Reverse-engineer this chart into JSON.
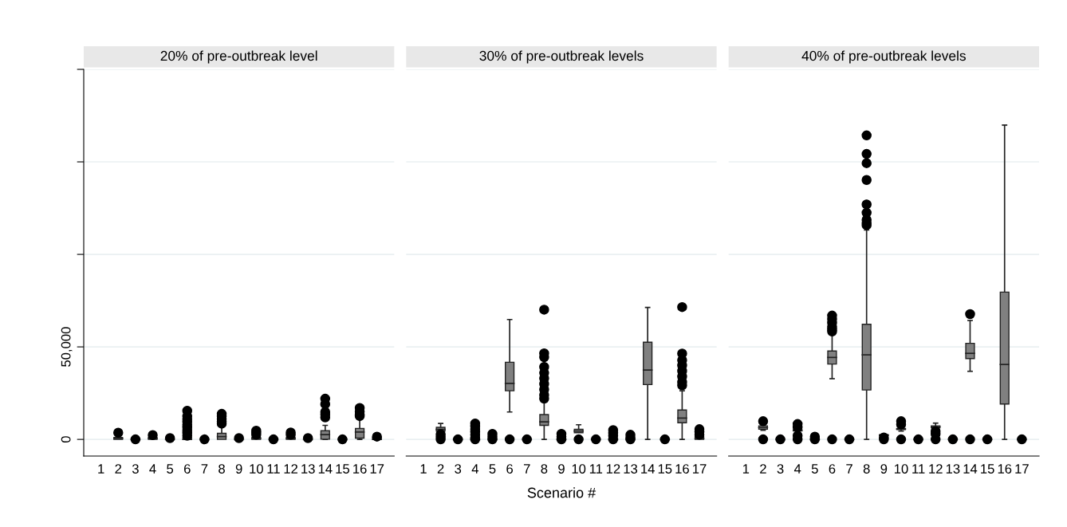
{
  "chart_data": [
    {
      "type": "box",
      "title": "20% of pre-outbreak level",
      "categories": [
        "1",
        "2",
        "3",
        "4",
        "5",
        "6",
        "7",
        "8",
        "9",
        "10",
        "11",
        "12",
        "13",
        "14",
        "15",
        "16",
        "17"
      ],
      "ylim": [
        -9000,
        200000
      ],
      "yticks": [
        0,
        {
          "value": 50000,
          "label": "50,000"
        },
        {
          "value": 100000,
          "label": null
        },
        {
          "value": 150000,
          "label": null
        },
        {
          "value": 200000,
          "label": null
        }
      ],
      "grid": "y",
      "series": [
        {
          "color": "#808080",
          "boxes": [
            null,
            {
              "low": 0,
              "q1": 0,
              "median": 500,
              "q3": 1000,
              "high": 1000,
              "outliers": [
                3600
              ]
            },
            {
              "low": 0,
              "q1": 0,
              "median": 0,
              "q3": 0,
              "high": 0,
              "outliers": [
                0
              ]
            },
            {
              "low": 0,
              "q1": 0,
              "median": 500,
              "q3": 1000,
              "high": 1000,
              "outliers": [
                2300
              ]
            },
            {
              "low": 0,
              "q1": 0,
              "median": 0,
              "q3": 0,
              "high": 0,
              "outliers": [
                700
              ]
            },
            {
              "low": 0,
              "q1": 0,
              "median": 0,
              "q3": 1000,
              "high": 1000,
              "outliers": [
                15500,
                12500,
                11000,
                9500,
                8000,
                6500,
                5000,
                3500,
                2000
              ]
            },
            {
              "low": 0,
              "q1": 0,
              "median": 0,
              "q3": 0,
              "high": 0,
              "outliers": [
                0
              ]
            },
            {
              "low": 0,
              "q1": 0,
              "median": 1500,
              "q3": 3300,
              "high": 7700,
              "outliers": [
                13800,
                12500,
                11000,
                9500,
                8500
              ]
            },
            {
              "low": 0,
              "q1": 0,
              "median": 0,
              "q3": 0,
              "high": 0,
              "outliers": [
                700
              ]
            },
            {
              "low": 0,
              "q1": 0,
              "median": 500,
              "q3": 1000,
              "high": 1000,
              "outliers": [
                4700,
                3500,
                2500
              ]
            },
            {
              "low": 0,
              "q1": 0,
              "median": 0,
              "q3": 0,
              "high": 0,
              "outliers": [
                0
              ]
            },
            {
              "low": 0,
              "q1": 0,
              "median": 500,
              "q3": 1000,
              "high": 1000,
              "outliers": [
                3700,
                2500
              ]
            },
            {
              "low": 0,
              "q1": 0,
              "median": 0,
              "q3": 0,
              "high": 0,
              "outliers": [
                700
              ]
            },
            {
              "low": 0,
              "q1": 100,
              "median": 2600,
              "q3": 4700,
              "high": 7600,
              "outliers": [
                22000,
                19100,
                14800,
                13500,
                11900
              ]
            },
            {
              "low": 0,
              "q1": 0,
              "median": 0,
              "q3": 0,
              "high": 0,
              "outliers": [
                0
              ]
            },
            {
              "low": 0,
              "q1": 700,
              "median": 4000,
              "q3": 5900,
              "high": 11900,
              "outliers": [
                17000,
                15000,
                13500,
                12600
              ]
            },
            {
              "low": 0,
              "q1": 0,
              "median": 0,
              "q3": 1000,
              "high": 1000,
              "outliers": [
                1500
              ]
            }
          ]
        }
      ],
      "tick_labels": "xy"
    },
    {
      "type": "box",
      "title": "30% of pre-outbreak levels",
      "xlabel": "Scenario #",
      "categories": [
        "1",
        "2",
        "3",
        "4",
        "5",
        "6",
        "7",
        "8",
        "9",
        "10",
        "11",
        "12",
        "13",
        "14",
        "15",
        "16",
        "17"
      ],
      "ylim": [
        -9000,
        200000
      ],
      "yticks": [
        {
          "value": 0,
          "label": null
        },
        {
          "value": 50000,
          "label": null
        },
        {
          "value": 100000,
          "label": null
        },
        {
          "value": 150000,
          "label": null
        },
        {
          "value": 200000,
          "label": null
        }
      ],
      "grid": "y",
      "series": [
        {
          "color": "#808080",
          "boxes": [
            null,
            {
              "low": 3300,
              "q1": 4400,
              "median": 5400,
              "q3": 6500,
              "high": 8600,
              "outliers": [
                2800,
                1500,
                0
              ]
            },
            {
              "low": 0,
              "q1": 0,
              "median": 0,
              "q3": 0,
              "high": 0,
              "outliers": [
                0
              ]
            },
            {
              "low": 0,
              "q1": 0,
              "median": 0,
              "q3": 0,
              "high": 0,
              "outliers": [
                8600,
                7000,
                5500,
                4000,
                2500,
                1000,
                0
              ]
            },
            {
              "low": 0,
              "q1": 0,
              "median": 0,
              "q3": 0,
              "high": 0,
              "outliers": [
                3000,
                1500,
                0
              ]
            },
            {
              "low": 14800,
              "q1": 26300,
              "median": 30300,
              "q3": 41700,
              "high": 64800,
              "outliers": [
                0
              ]
            },
            {
              "low": 0,
              "q1": 0,
              "median": 0,
              "q3": 0,
              "high": 0,
              "outliers": [
                0
              ]
            },
            {
              "low": 0,
              "q1": 7600,
              "median": 9500,
              "q3": 13400,
              "high": 21000,
              "outliers": [
                70100,
                46500,
                44400,
                39200,
                36000,
                33000,
                30000,
                27000,
                24000,
                22000
              ]
            },
            {
              "low": 0,
              "q1": 0,
              "median": 0,
              "q3": 0,
              "high": 0,
              "outliers": [
                3000,
                1500,
                0
              ]
            },
            {
              "low": 3600,
              "q1": 3600,
              "median": 4500,
              "q3": 5500,
              "high": 7900,
              "outliers": [
                0
              ]
            },
            {
              "low": 0,
              "q1": 0,
              "median": 0,
              "q3": 0,
              "high": 0,
              "outliers": [
                0
              ]
            },
            {
              "low": 0,
              "q1": 0,
              "median": 0,
              "q3": 0,
              "high": 0,
              "outliers": [
                5000,
                3500,
                2000,
                0
              ]
            },
            {
              "low": 0,
              "q1": 0,
              "median": 0,
              "q3": 0,
              "high": 0,
              "outliers": [
                2500,
                1000,
                0
              ]
            },
            {
              "low": 0,
              "q1": 29600,
              "median": 37500,
              "q3": 52500,
              "high": 71300
            },
            {
              "low": 0,
              "q1": 0,
              "median": 0,
              "q3": 0,
              "high": 0,
              "outliers": [
                0
              ]
            },
            {
              "low": 0,
              "q1": 9000,
              "median": 11500,
              "q3": 15900,
              "high": 26300,
              "outliers": [
                71500,
                46400,
                42800,
                40000,
                37000,
                34000,
                31000,
                29200
              ]
            },
            {
              "low": 0,
              "q1": 0,
              "median": 500,
              "q3": 1500,
              "high": 1500,
              "outliers": [
                5500,
                4000,
                2500
              ]
            }
          ]
        }
      ],
      "tick_labels": "x"
    },
    {
      "type": "box",
      "title": "40% of pre-outbreak levels",
      "categories": [
        "1",
        "2",
        "3",
        "4",
        "5",
        "6",
        "7",
        "8",
        "9",
        "10",
        "11",
        "12",
        "13",
        "14",
        "15",
        "16",
        "17"
      ],
      "ylim": [
        -9000,
        200000
      ],
      "yticks": [
        {
          "value": 0,
          "label": null
        },
        {
          "value": 50000,
          "label": null
        },
        {
          "value": 100000,
          "label": null
        },
        {
          "value": 150000,
          "label": null
        },
        {
          "value": 200000,
          "label": null
        }
      ],
      "grid": "y",
      "series": [
        {
          "color": "#808080",
          "boxes": [
            null,
            {
              "low": 4900,
              "q1": 5500,
              "median": 6400,
              "q3": 7300,
              "high": 7700,
              "outliers": [
                9800,
                0
              ]
            },
            {
              "low": 0,
              "q1": 0,
              "median": 0,
              "q3": 0,
              "high": 0,
              "outliers": [
                0
              ]
            },
            {
              "low": 4000,
              "q1": 4600,
              "median": 4900,
              "q3": 5200,
              "high": 5200,
              "outliers": [
                8300,
                6500,
                2000,
                0
              ]
            },
            {
              "low": 0,
              "q1": 0,
              "median": 0,
              "q3": 0,
              "high": 0,
              "outliers": [
                1500,
                0
              ]
            },
            {
              "low": 32800,
              "q1": 40700,
              "median": 44300,
              "q3": 47800,
              "high": 56900,
              "outliers": [
                66900,
                65000,
                63000,
                61000,
                59500,
                58300,
                0
              ]
            },
            {
              "low": 0,
              "q1": 0,
              "median": 0,
              "q3": 0,
              "high": 0,
              "outliers": [
                0
              ]
            },
            {
              "low": 0,
              "q1": 26700,
              "median": 45700,
              "q3": 62200,
              "high": 113200,
              "outliers": [
                164300,
                154300,
                149300,
                140200,
                127000,
                122500,
                118700,
                117000,
                115800
              ]
            },
            {
              "low": 2000,
              "q1": 2000,
              "median": 2300,
              "q3": 2600,
              "high": 2600,
              "outliers": [
                1000,
                0
              ]
            },
            {
              "low": 4500,
              "q1": 5300,
              "median": 5600,
              "q3": 5900,
              "high": 5900,
              "outliers": [
                9800,
                8100,
                0
              ]
            },
            {
              "low": 0,
              "q1": 0,
              "median": 0,
              "q3": 0,
              "high": 0,
              "outliers": [
                0
              ]
            },
            {
              "low": 6300,
              "q1": 6300,
              "median": 6800,
              "q3": 7300,
              "high": 8800,
              "outliers": [
                4500,
                3000,
                0
              ]
            },
            {
              "low": 0,
              "q1": 0,
              "median": 0,
              "q3": 0,
              "high": 0,
              "outliers": [
                0
              ]
            },
            {
              "low": 36800,
              "q1": 43700,
              "median": 46500,
              "q3": 51900,
              "high": 64300,
              "outliers": [
                67700,
                0
              ]
            },
            {
              "low": 0,
              "q1": 0,
              "median": 0,
              "q3": 0,
              "high": 0,
              "outliers": [
                0
              ]
            },
            {
              "low": 0,
              "q1": 19100,
              "median": 40500,
              "q3": 79600,
              "high": 169900
            },
            {
              "low": 0,
              "q1": 0,
              "median": 0,
              "q3": 0,
              "high": 0,
              "outliers": [
                0
              ]
            }
          ]
        }
      ],
      "tick_labels": "x"
    }
  ]
}
